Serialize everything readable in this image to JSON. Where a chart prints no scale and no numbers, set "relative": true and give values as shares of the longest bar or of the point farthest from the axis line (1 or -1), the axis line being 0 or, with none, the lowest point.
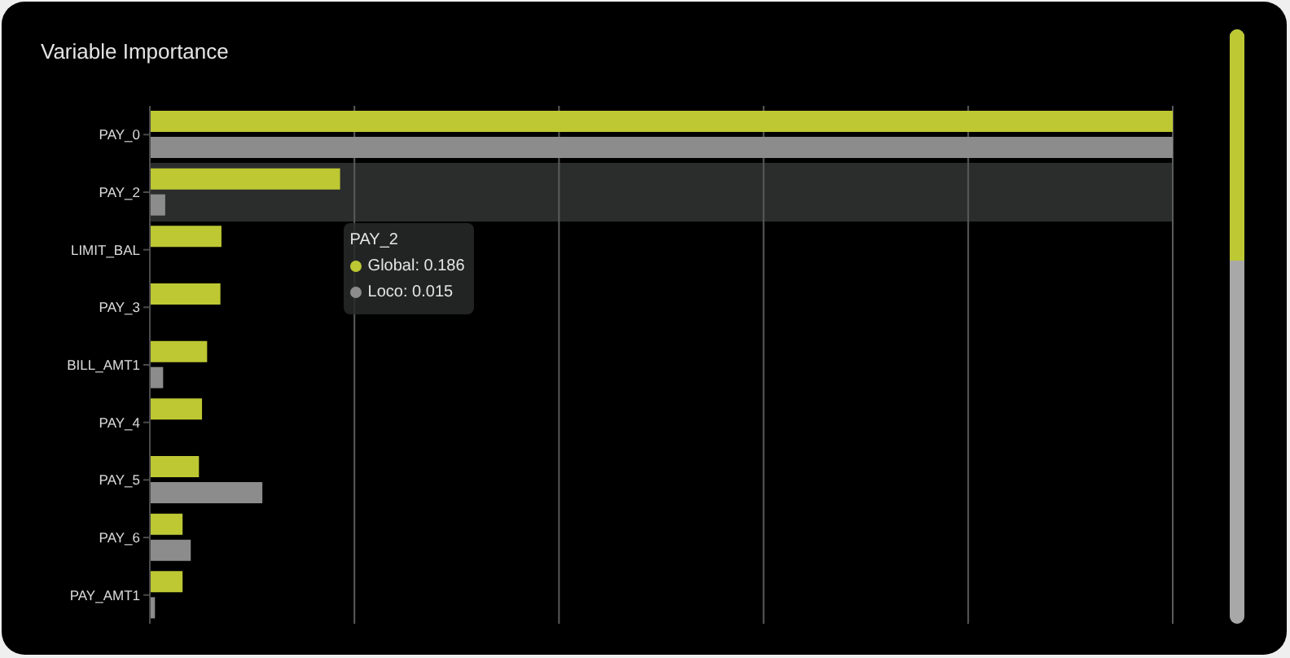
{
  "chart_data": {
    "type": "bar",
    "orientation": "horizontal",
    "relative": true,
    "title": "Variable Importance",
    "categories": [
      "PAY_0",
      "PAY_2",
      "LIMIT_BAL",
      "PAY_3",
      "BILL_AMT1",
      "PAY_4",
      "PAY_5",
      "PAY_6",
      "PAY_AMT1"
    ],
    "series": [
      {
        "color": "#bdc833",
        "values": [
          1,
          0.186,
          0.07,
          0.069,
          0.056,
          0.051,
          0.048,
          0.032,
          0.032
        ]
      },
      {
        "color": "#8c8c8c",
        "values": [
          1,
          0.015,
          0,
          0,
          0.013,
          0,
          0.11,
          0.04,
          0.005
        ]
      }
    ],
    "grid": "x",
    "bands": [
      {
        "axis": "y",
        "from": "PAY_2",
        "to": "PAY_2",
        "color": "#2b2d2d"
      }
    ],
    "annotations": [
      "Global: 0.186",
      "Loco: 0.015"
    ]
  }
}
